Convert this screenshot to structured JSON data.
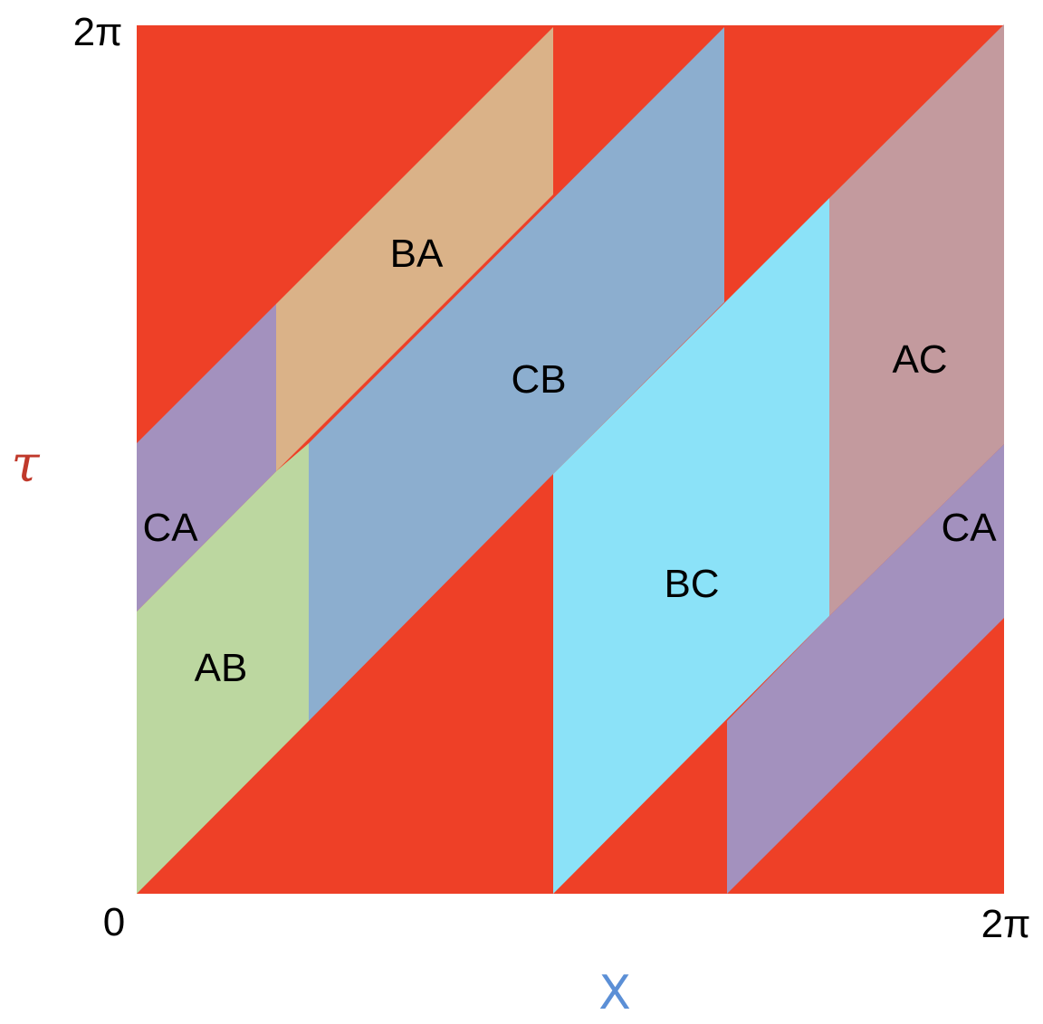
{
  "diagram": {
    "axes": {
      "x_label": "X",
      "y_label": "τ",
      "x_label_color": "#5b8fd6",
      "y_label_color": "#c0392b",
      "ticks": {
        "x_start": "0",
        "x_end": "2π",
        "y_end": "2π"
      }
    },
    "background_color": "#ee4027",
    "regions": [
      {
        "id": "BA",
        "label": "BA",
        "color": "#dab288"
      },
      {
        "id": "CB",
        "label": "CB",
        "color": "#8caecf"
      },
      {
        "id": "BC",
        "label": "BC",
        "color": "#8be2f8"
      },
      {
        "id": "AC",
        "label": "AC",
        "color": "#c39a9e"
      },
      {
        "id": "AB",
        "label": "AB",
        "color": "#bcd7a0"
      },
      {
        "id": "CA-left",
        "label": "CA",
        "color": "#a391be"
      },
      {
        "id": "CA-right",
        "label": "CA",
        "color": "#a391be"
      }
    ]
  }
}
